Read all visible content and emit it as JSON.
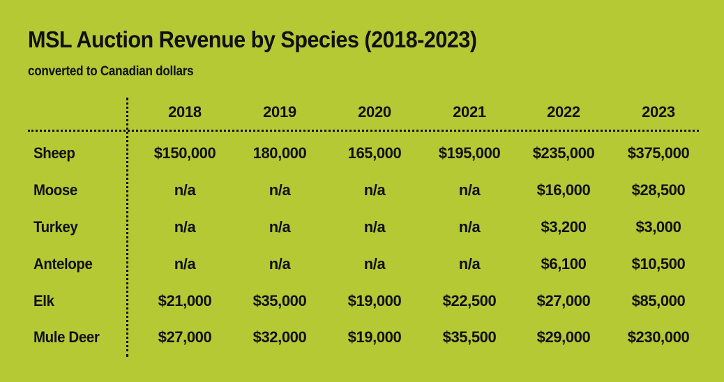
{
  "chart_data": {
    "type": "table",
    "title": "MSL Auction Revenue by Species (2018-2023)",
    "subtitle": "converted to Canadian dollars",
    "years": [
      "2018",
      "2019",
      "2020",
      "2021",
      "2022",
      "2023"
    ],
    "rows": [
      {
        "species": "Sheep",
        "values": [
          "$150,000",
          "180,000",
          "165,000",
          "$195,000",
          "$235,000",
          "$375,000"
        ]
      },
      {
        "species": "Moose",
        "values": [
          "n/a",
          "n/a",
          "n/a",
          "n/a",
          "$16,000",
          "$28,500"
        ]
      },
      {
        "species": "Turkey",
        "values": [
          "n/a",
          "n/a",
          "n/a",
          "n/a",
          "$3,200",
          "$3,000"
        ]
      },
      {
        "species": "Antelope",
        "values": [
          "n/a",
          "n/a",
          "n/a",
          "n/a",
          "$6,100",
          "$10,500"
        ]
      },
      {
        "species": "Elk",
        "values": [
          "$21,000",
          "$35,000",
          "$19,000",
          "$22,500",
          "$27,000",
          "$85,000"
        ]
      },
      {
        "species": "Mule Deer",
        "values": [
          "$27,000",
          "$32,000",
          "$19,000",
          "$35,500",
          "$29,000",
          "$230,000"
        ]
      }
    ],
    "colors": {
      "background": "#b5c935",
      "text": "#111111"
    }
  }
}
